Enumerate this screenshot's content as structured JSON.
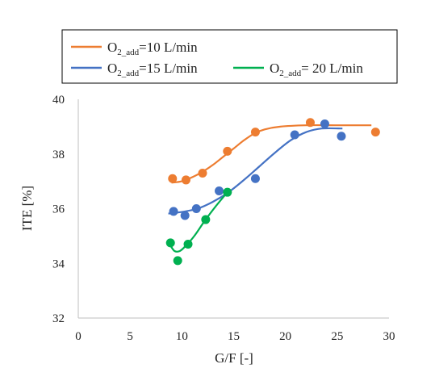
{
  "chart_data": {
    "type": "scatter",
    "xlabel": "G/F [-]",
    "ylabel": "ITE [%]",
    "xlim": [
      0,
      30
    ],
    "ylim": [
      32,
      40
    ],
    "xticks": [
      0,
      5,
      10,
      15,
      20,
      25,
      30
    ],
    "yticks": [
      32,
      34,
      36,
      38,
      40
    ],
    "grid": false,
    "legend": {
      "placement": "top"
    },
    "series": [
      {
        "name_main": "O",
        "name_sub": "2_add",
        "name_rest": "=10 L/min",
        "color": "#ED7D31",
        "points": [
          {
            "x": 9.1,
            "y": 37.1
          },
          {
            "x": 10.4,
            "y": 37.05
          },
          {
            "x": 12.0,
            "y": 37.3
          },
          {
            "x": 14.4,
            "y": 38.1
          },
          {
            "x": 17.1,
            "y": 38.8
          },
          {
            "x": 22.4,
            "y": 39.15
          },
          {
            "x": 28.7,
            "y": 38.8
          }
        ],
        "trend": [
          {
            "x": 9.0,
            "y": 36.95
          },
          {
            "x": 10.0,
            "y": 37.0
          },
          {
            "x": 11.0,
            "y": 37.15
          },
          {
            "x": 12.0,
            "y": 37.35
          },
          {
            "x": 13.0,
            "y": 37.6
          },
          {
            "x": 14.0,
            "y": 37.9
          },
          {
            "x": 15.0,
            "y": 38.2
          },
          {
            "x": 16.0,
            "y": 38.5
          },
          {
            "x": 17.0,
            "y": 38.75
          },
          {
            "x": 18.0,
            "y": 38.9
          },
          {
            "x": 19.5,
            "y": 39.0
          },
          {
            "x": 22.0,
            "y": 39.05
          },
          {
            "x": 25.0,
            "y": 39.05
          },
          {
            "x": 28.3,
            "y": 39.05
          }
        ]
      },
      {
        "name_main": "O",
        "name_sub": "2_add",
        "name_rest": "=15 L/min",
        "color": "#4472C4",
        "points": [
          {
            "x": 9.2,
            "y": 35.9
          },
          {
            "x": 10.3,
            "y": 35.75
          },
          {
            "x": 11.4,
            "y": 36.0
          },
          {
            "x": 13.6,
            "y": 36.65
          },
          {
            "x": 17.1,
            "y": 37.1
          },
          {
            "x": 20.9,
            "y": 38.7
          },
          {
            "x": 23.8,
            "y": 39.1
          },
          {
            "x": 25.4,
            "y": 38.65
          }
        ],
        "trend": [
          {
            "x": 8.7,
            "y": 35.82
          },
          {
            "x": 10.0,
            "y": 35.88
          },
          {
            "x": 11.5,
            "y": 36.0
          },
          {
            "x": 13.0,
            "y": 36.25
          },
          {
            "x": 14.5,
            "y": 36.6
          },
          {
            "x": 16.0,
            "y": 37.05
          },
          {
            "x": 17.5,
            "y": 37.55
          },
          {
            "x": 19.0,
            "y": 38.05
          },
          {
            "x": 20.5,
            "y": 38.5
          },
          {
            "x": 22.0,
            "y": 38.8
          },
          {
            "x": 23.5,
            "y": 38.93
          },
          {
            "x": 25.5,
            "y": 38.93
          }
        ]
      },
      {
        "name_main": "O",
        "name_sub": "2_add",
        "name_rest": "= 20 L/min",
        "color": "#00B050",
        "points": [
          {
            "x": 8.9,
            "y": 34.75
          },
          {
            "x": 9.6,
            "y": 34.1
          },
          {
            "x": 10.6,
            "y": 34.7
          },
          {
            "x": 12.3,
            "y": 35.6
          },
          {
            "x": 14.4,
            "y": 36.6
          }
        ],
        "trend": [
          {
            "x": 8.9,
            "y": 34.65
          },
          {
            "x": 9.3,
            "y": 34.45
          },
          {
            "x": 9.8,
            "y": 34.45
          },
          {
            "x": 10.4,
            "y": 34.65
          },
          {
            "x": 11.2,
            "y": 35.0
          },
          {
            "x": 12.2,
            "y": 35.55
          },
          {
            "x": 13.3,
            "y": 36.1
          },
          {
            "x": 14.4,
            "y": 36.6
          }
        ]
      }
    ]
  }
}
